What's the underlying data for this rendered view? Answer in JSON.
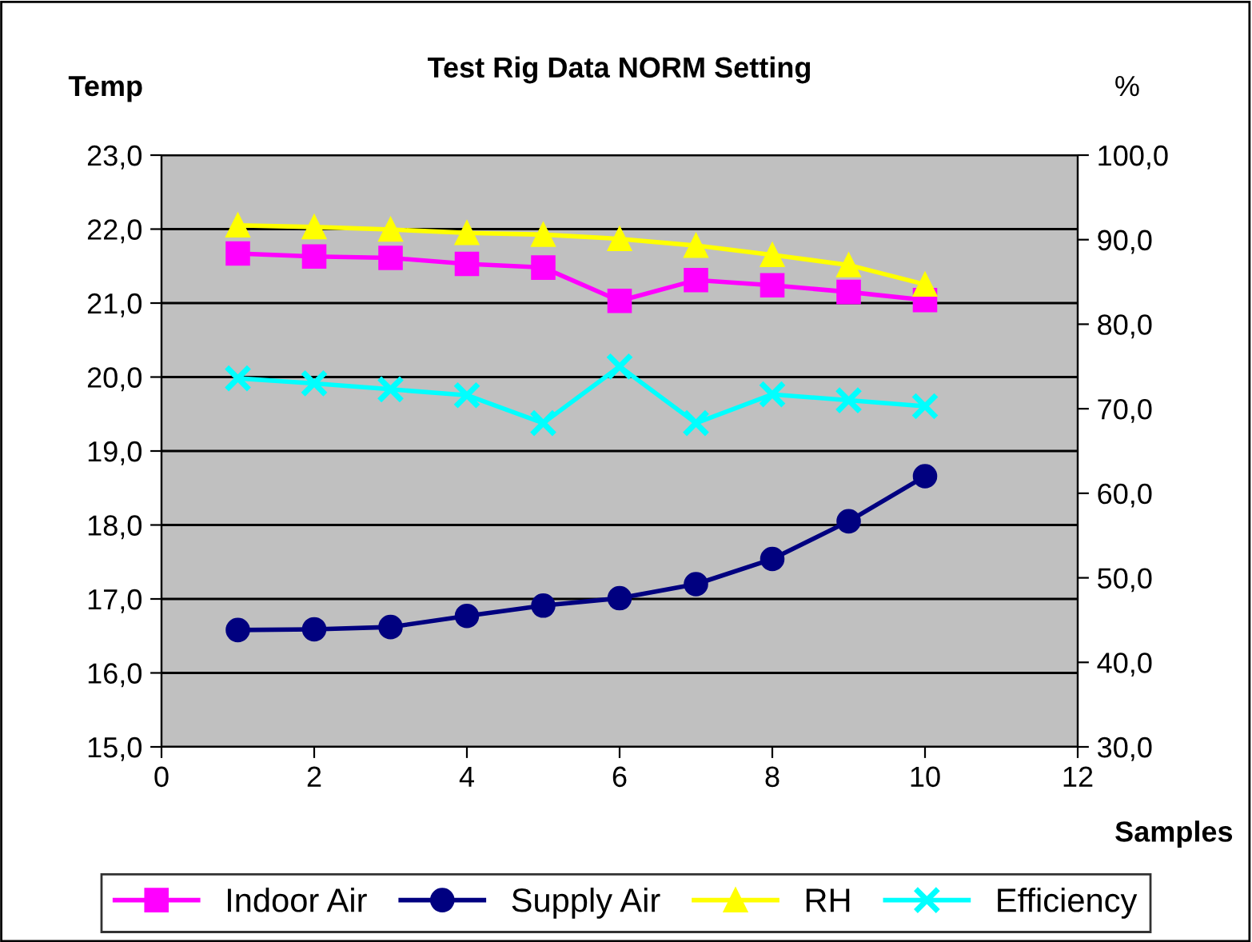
{
  "chart_data": {
    "type": "line",
    "title": "Test Rig Data NORM Setting",
    "ylabel": "Temp",
    "y2label": "%",
    "xlabel": "Samples",
    "x": [
      1,
      2,
      3,
      4,
      5,
      6,
      7,
      8,
      9,
      10
    ],
    "xlim": [
      0,
      12
    ],
    "xticks": [
      0,
      2,
      4,
      6,
      8,
      10,
      12
    ],
    "ylim": [
      15,
      23
    ],
    "yticks": [
      {
        "value": 15,
        "label": "15,0"
      },
      {
        "value": 16,
        "label": "16,0"
      },
      {
        "value": 17,
        "label": "17,0"
      },
      {
        "value": 18,
        "label": "18,0"
      },
      {
        "value": 19,
        "label": "19,0"
      },
      {
        "value": 20,
        "label": "20,0"
      },
      {
        "value": 21,
        "label": "21,0"
      },
      {
        "value": 22,
        "label": "22,0"
      },
      {
        "value": 23,
        "label": "23,0"
      }
    ],
    "y2lim": [
      30,
      100
    ],
    "y2ticks": [
      {
        "value": 30,
        "label": "30,0"
      },
      {
        "value": 40,
        "label": "40,0"
      },
      {
        "value": 50,
        "label": "50,0"
      },
      {
        "value": 60,
        "label": "60,0"
      },
      {
        "value": 70,
        "label": "70,0"
      },
      {
        "value": 80,
        "label": "80,0"
      },
      {
        "value": 90,
        "label": "90,0"
      },
      {
        "value": 100,
        "label": "100,0"
      }
    ],
    "grid": "y",
    "legend": "bottom",
    "series": [
      {
        "name": "Indoor Air",
        "color": "#ff00ff",
        "marker": "square",
        "values": [
          21.67,
          21.63,
          21.61,
          21.53,
          21.48,
          21.03,
          21.31,
          21.24,
          21.15,
          21.04
        ]
      },
      {
        "name": "Supply Air",
        "color": "#000080",
        "marker": "circle",
        "values": [
          16.58,
          16.59,
          16.62,
          16.77,
          16.91,
          17.01,
          17.2,
          17.54,
          18.05,
          18.66
        ]
      },
      {
        "name": "RH",
        "color": "#ffff00",
        "marker": "triangle",
        "axis": "y2",
        "values": [
          91.7,
          91.5,
          91.2,
          90.8,
          90.6,
          90.1,
          89.3,
          88.2,
          87.0,
          84.7
        ]
      },
      {
        "name": "Efficiency",
        "color": "#00ffff",
        "marker": "cross",
        "axis": "y2",
        "values": [
          73.6,
          73.0,
          72.3,
          71.6,
          68.3,
          75.0,
          68.3,
          71.7,
          71.0,
          70.3
        ]
      }
    ]
  }
}
